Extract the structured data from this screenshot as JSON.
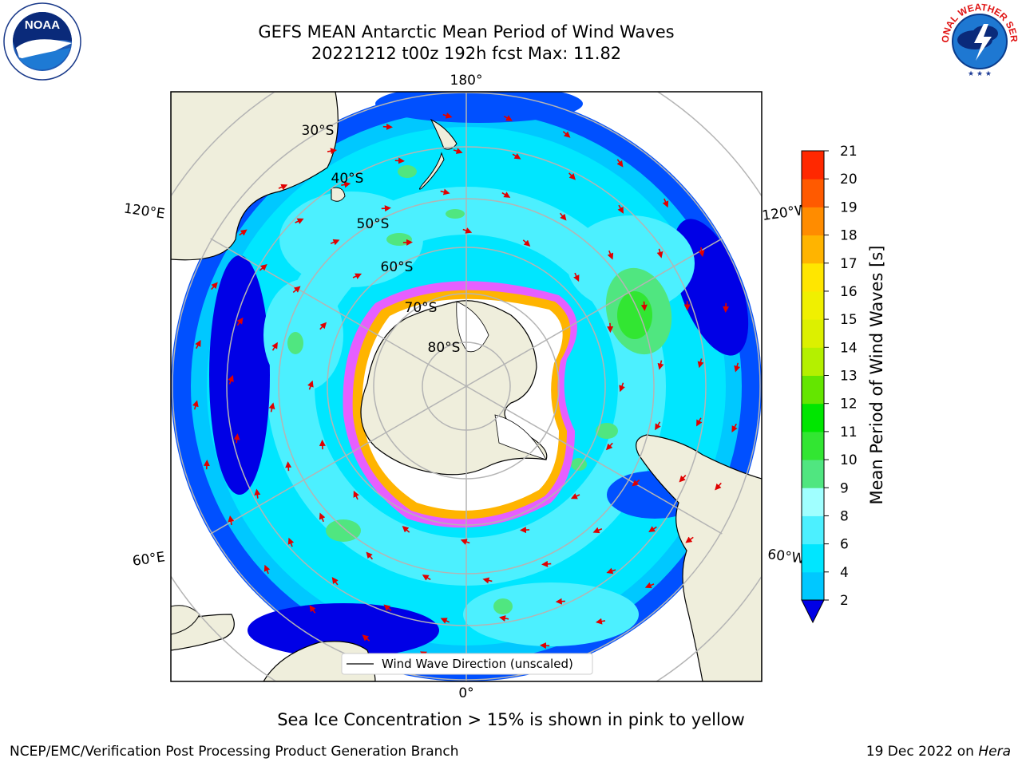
{
  "header": {
    "title_line1": "GEFS MEAN Antarctic Mean Period of Wind Waves",
    "title_line2": "20221212 t00z 192h fcst   Max: 11.82"
  },
  "logos": {
    "noaa_text": "NOAA",
    "nws_text": "NATIONAL WEATHER SERVICE"
  },
  "map": {
    "projection": "south-polar-stereographic",
    "lon_labels": {
      "top": "180°",
      "bottom": "0°",
      "left_upper": "120°E",
      "left_lower": "60°E",
      "right_upper": "120°W",
      "right_lower": "60°W"
    },
    "lat_labels": [
      "30°S",
      "40°S",
      "50°S",
      "60°S",
      "70°S",
      "80°S"
    ],
    "legend_label": "Wind Wave Direction (unscaled)"
  },
  "colorbar": {
    "label": "Mean Period of Wind Waves [s]",
    "ticks": [
      "2",
      "4",
      "6",
      "8",
      "9",
      "10",
      "11",
      "12",
      "13",
      "14",
      "15",
      "16",
      "17",
      "18",
      "19",
      "20",
      "21"
    ],
    "colors": [
      "#0050ff",
      "#00c8ff",
      "#00e6ff",
      "#4cf0ff",
      "#a0ffff",
      "#50e680",
      "#32e632",
      "#00e600",
      "#64e600",
      "#b4f000",
      "#dcf000",
      "#f0f000",
      "#ffe600",
      "#ffb400",
      "#ff8c00",
      "#ff5a00",
      "#ff2800",
      "#ff0000"
    ],
    "underflow_color": "#0000e6"
  },
  "caption": "Sea Ice Concentration > 15% is shown in pink to yellow",
  "footer": {
    "left": "NCEP/EMC/Verification Post Processing Product Generation Branch",
    "right_date": "19 Dec 2022 on ",
    "right_machine": "Hera"
  }
}
